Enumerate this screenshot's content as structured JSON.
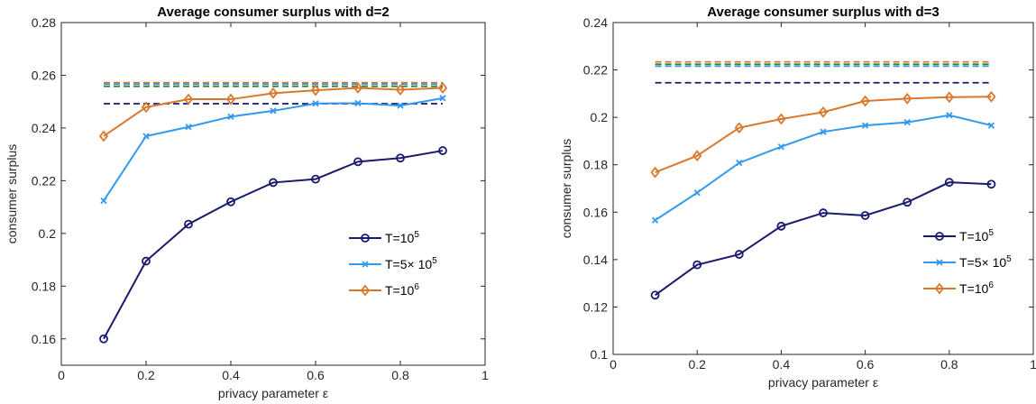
{
  "chart_data": [
    {
      "type": "line",
      "title": "Average consumer surplus with d=2",
      "xlabel": "privacy parameter ε",
      "ylabel": "consumer surplus",
      "xlim": [
        0,
        1
      ],
      "ylim": [
        0.15,
        0.28
      ],
      "xticks": [
        0,
        0.2,
        0.4,
        0.6,
        0.8,
        1
      ],
      "xtick_labels": [
        "0",
        "0.2",
        "0.4",
        "0.6",
        "0.8",
        "1"
      ],
      "yticks": [
        0.16,
        0.18,
        0.2,
        0.22,
        0.24,
        0.26,
        0.28
      ],
      "ytick_labels": [
        "0.16",
        "0.18",
        "0.2",
        "0.22",
        "0.24",
        "0.26",
        "0.28"
      ],
      "grid": false,
      "legend_position": "lower-right",
      "x": [
        0.1,
        0.2,
        0.3,
        0.4,
        0.5,
        0.6,
        0.7,
        0.8,
        0.9
      ],
      "series": [
        {
          "name": "T=10",
          "name_sup": "5",
          "color": "#1a1a6e",
          "marker": "circle",
          "values": [
            0.16,
            0.1895,
            0.2035,
            0.212,
            0.2193,
            0.2206,
            0.2272,
            0.2286,
            0.2314
          ]
        },
        {
          "name": "T=5× 10",
          "name_sup": "5",
          "color": "#3399ee",
          "marker": "x",
          "values": [
            0.2124,
            0.2369,
            0.2404,
            0.2443,
            0.2465,
            0.2493,
            0.2494,
            0.2485,
            0.2513
          ]
        },
        {
          "name": "T=10",
          "name_sup": "6",
          "color": "#d9782d",
          "marker": "diamond",
          "values": [
            0.2369,
            0.2479,
            0.2509,
            0.2509,
            0.2532,
            0.2543,
            0.2552,
            0.2545,
            0.2552
          ]
        }
      ],
      "reference_lines": [
        {
          "y": 0.2492,
          "color": "#1a1a6e"
        },
        {
          "y": 0.2558,
          "color": "#2a8a2a"
        },
        {
          "y": 0.2566,
          "color": "#3399ee"
        },
        {
          "y": 0.2572,
          "color": "#d9782d"
        }
      ]
    },
    {
      "type": "line",
      "title": "Average consumer surplus with d=3",
      "xlabel": "privacy parameter ε",
      "ylabel": "consumer surplus",
      "xlim": [
        0,
        1
      ],
      "ylim": [
        0.1,
        0.24
      ],
      "xticks": [
        0,
        0.2,
        0.4,
        0.6,
        0.8,
        1
      ],
      "xtick_labels": [
        "0",
        "0.2",
        "0.4",
        "0.6",
        "0.8",
        "1"
      ],
      "yticks": [
        0.1,
        0.12,
        0.14,
        0.16,
        0.18,
        0.2,
        0.22,
        0.24
      ],
      "ytick_labels": [
        "0.1",
        "0.12",
        "0.14",
        "0.16",
        "0.18",
        "0.2",
        "0.22",
        "0.24"
      ],
      "grid": false,
      "legend_position": "lower-right",
      "x": [
        0.1,
        0.2,
        0.3,
        0.4,
        0.5,
        0.6,
        0.7,
        0.8,
        0.9
      ],
      "series": [
        {
          "name": "T=10",
          "name_sup": "5",
          "color": "#1a1a6e",
          "marker": "circle",
          "values": [
            0.125,
            0.1378,
            0.1422,
            0.1541,
            0.1597,
            0.1586,
            0.1642,
            0.1726,
            0.1718
          ]
        },
        {
          "name": "T=5× 10",
          "name_sup": "5",
          "color": "#3399ee",
          "marker": "x",
          "values": [
            0.1566,
            0.1682,
            0.1808,
            0.1876,
            0.1939,
            0.1966,
            0.1979,
            0.2009,
            0.1966
          ]
        },
        {
          "name": "T=10",
          "name_sup": "6",
          "color": "#d9782d",
          "marker": "diamond",
          "values": [
            0.1768,
            0.1838,
            0.1956,
            0.1993,
            0.2022,
            0.2069,
            0.2079,
            0.2085,
            0.2087
          ]
        }
      ],
      "reference_lines": [
        {
          "y": 0.2146,
          "color": "#1a1a6e"
        },
        {
          "y": 0.2216,
          "color": "#3399ee"
        },
        {
          "y": 0.2224,
          "color": "#2a8a2a"
        },
        {
          "y": 0.2234,
          "color": "#d9782d"
        }
      ]
    }
  ]
}
